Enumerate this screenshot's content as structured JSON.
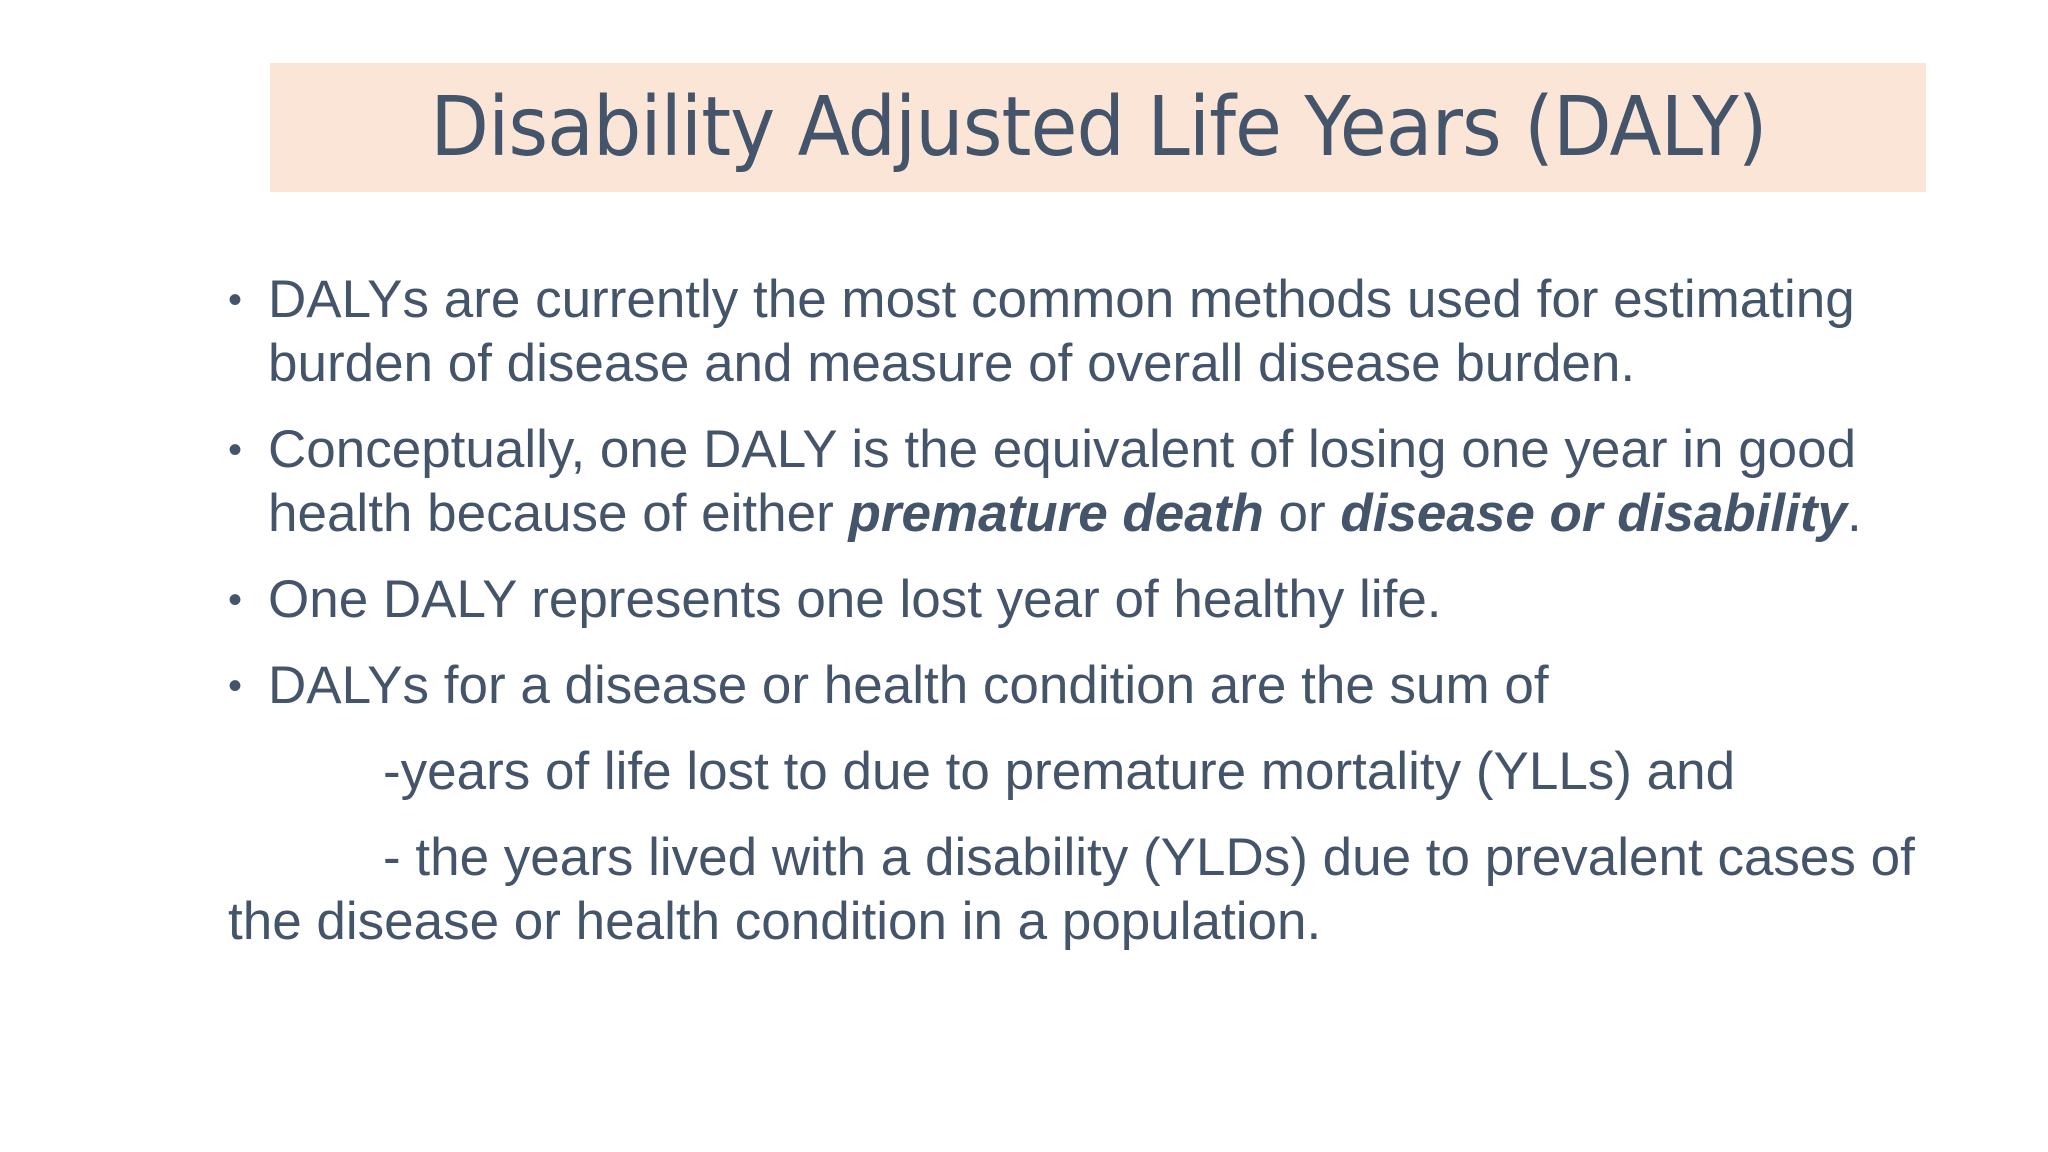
{
  "slide": {
    "title": "Disability Adjusted Life Years (DALY)"
  },
  "bullets": [
    {
      "text": "DALYs are currently the most common methods used for estimating burden of disease and measure of overall disease burden."
    },
    {
      "text_before": "Conceptually, one DALY is the equivalent of losing one year in good health because of either ",
      "emph_1": "premature death",
      "text_middle": " or ",
      "emph_2": "disease or disability",
      "text_after": "."
    },
    {
      "text": "One DALY represents one lost year of healthy life."
    },
    {
      "text": "DALYs for a disease or health condition are the sum of"
    }
  ],
  "sublines": [
    "-years of life lost to due to premature mortality (YLLs) and",
    "- the years lived with a disability (YLDs) due to prevalent  cases of the disease or health condition in a population."
  ],
  "bullet_glyph": "•",
  "colors": {
    "text": "#44546a",
    "title_band": "#fbe5d6",
    "background": "#ffffff"
  }
}
